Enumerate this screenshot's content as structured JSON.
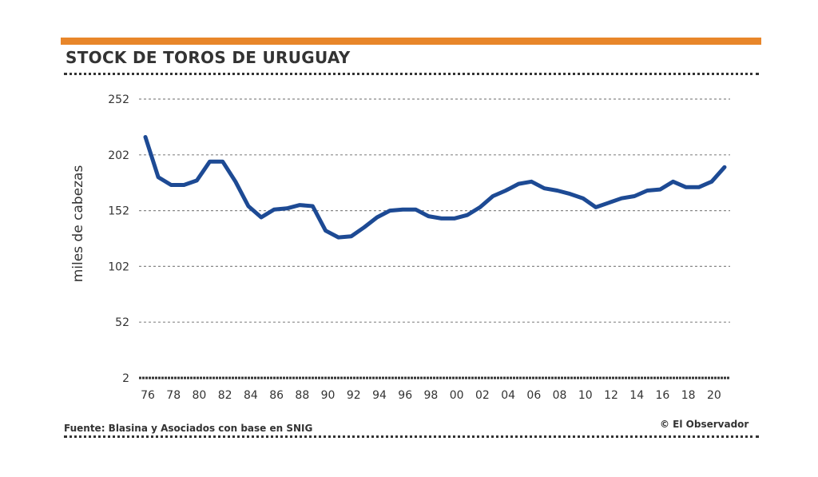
{
  "title": "STOCK DE TOROS DE URUGUAY",
  "source": "Fuente: Blasina y Asociados con base en SNIG",
  "credit": "© El Observador",
  "colors": {
    "accent": "#e8862a",
    "line": "#1d4a94"
  },
  "chart_data": {
    "type": "line",
    "title": "STOCK DE TOROS DE URUGUAY",
    "xlabel": "",
    "ylabel": "miles de cabezas",
    "ylim": [
      2,
      252
    ],
    "yticks": [
      "252",
      "202",
      "152",
      "102",
      "52",
      "2"
    ],
    "ytick_values": [
      252,
      202,
      152,
      102,
      52,
      2
    ],
    "xticks": [
      "76",
      "78",
      "80",
      "82",
      "84",
      "86",
      "88",
      "90",
      "92",
      "94",
      "96",
      "98",
      "00",
      "02",
      "04",
      "06",
      "08",
      "10",
      "12",
      "14",
      "16",
      "18",
      "20"
    ],
    "grid": true,
    "series": [
      {
        "name": "Stock de toros",
        "x": [
          1976,
          1977,
          1978,
          1979,
          1980,
          1981,
          1982,
          1983,
          1984,
          1985,
          1986,
          1987,
          1988,
          1989,
          1990,
          1991,
          1992,
          1993,
          1994,
          1995,
          1996,
          1997,
          1998,
          1999,
          2000,
          2001,
          2002,
          2003,
          2004,
          2005,
          2006,
          2007,
          2008,
          2009,
          2010,
          2011,
          2012,
          2013,
          2014,
          2015,
          2016,
          2017,
          2018,
          2019,
          2020,
          2021
        ],
        "values": [
          218,
          182,
          175,
          175,
          179,
          196,
          196,
          178,
          156,
          146,
          153,
          154,
          157,
          156,
          134,
          128,
          129,
          137,
          146,
          152,
          153,
          153,
          147,
          145,
          145,
          148,
          155,
          165,
          170,
          176,
          178,
          172,
          170,
          167,
          163,
          155,
          159,
          163,
          165,
          170,
          171,
          178,
          173,
          173,
          178,
          191
        ]
      }
    ]
  }
}
